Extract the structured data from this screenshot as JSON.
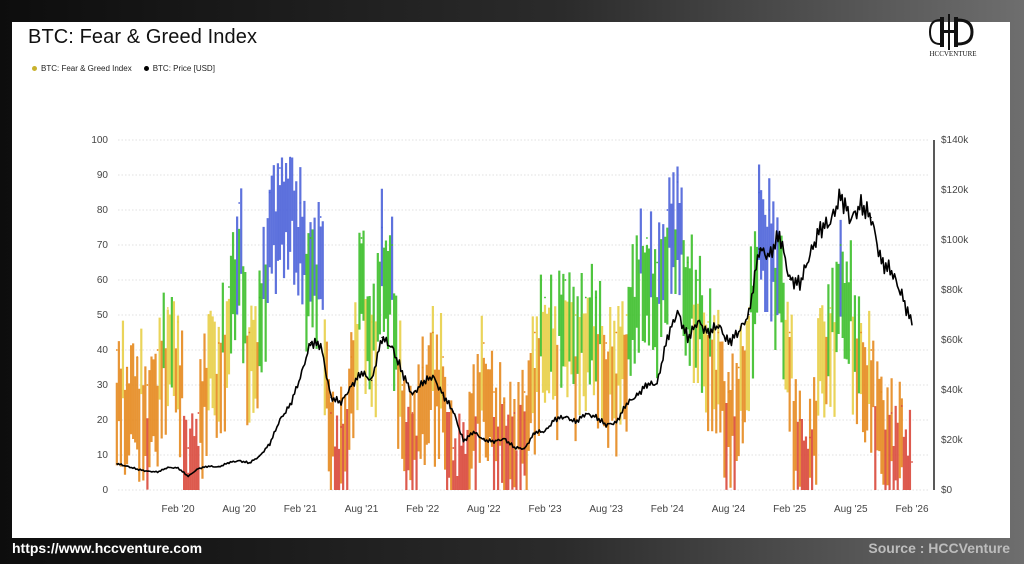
{
  "chart_data": {
    "type": "line",
    "title": "BTC: Fear & Greed Index",
    "legend": [
      {
        "name": "BTC: Fear & Greed Index",
        "color": "#c9b22e"
      },
      {
        "name": "BTC: Price [USD]",
        "color": "#000000"
      }
    ],
    "legend_placement": "top-left",
    "grid": true,
    "x_ticks": [
      "Feb '20",
      "Aug '20",
      "Feb '21",
      "Aug '21",
      "Feb '22",
      "Aug '22",
      "Feb '23",
      "Aug '23",
      "Feb '24",
      "Aug '24",
      "Feb '25",
      "Aug '25",
      "Feb '26"
    ],
    "y_left": {
      "ticks": [
        "0",
        "10",
        "20",
        "30",
        "40",
        "50",
        "60",
        "70",
        "80",
        "90",
        "100"
      ],
      "range": [
        0,
        100
      ]
    },
    "y_right": {
      "ticks": [
        "$0",
        "$20k",
        "$40k",
        "$60k",
        "$80k",
        "$100k",
        "$120k",
        "$140k"
      ],
      "range": [
        0,
        140000
      ]
    },
    "zone_colors": {
      "extreme_fear": "#d9483b",
      "fear": "#e58a1f",
      "neutral": "#e8cf48",
      "greed": "#3cbf2a",
      "extreme_greed": "#4d63d9"
    },
    "zone_thresholds": [
      25,
      46,
      55,
      75
    ],
    "series": [
      {
        "name": "BTC: Fear & Greed Index",
        "x": [
          "2019-08",
          "2019-09",
          "2019-10",
          "2019-11",
          "2019-12",
          "2020-01",
          "2020-02",
          "2020-03",
          "2020-04",
          "2020-05",
          "2020-06",
          "2020-07",
          "2020-08",
          "2020-09",
          "2020-10",
          "2020-11",
          "2020-12",
          "2021-01",
          "2021-02",
          "2021-03",
          "2021-04",
          "2021-05",
          "2021-06",
          "2021-07",
          "2021-08",
          "2021-09",
          "2021-10",
          "2021-11",
          "2021-12",
          "2022-01",
          "2022-02",
          "2022-03",
          "2022-04",
          "2022-05",
          "2022-06",
          "2022-07",
          "2022-08",
          "2022-09",
          "2022-10",
          "2022-11",
          "2022-12",
          "2023-01",
          "2023-02",
          "2023-03",
          "2023-04",
          "2023-05",
          "2023-06",
          "2023-07",
          "2023-08",
          "2023-09",
          "2023-10",
          "2023-11",
          "2023-12",
          "2024-01",
          "2024-02",
          "2024-03",
          "2024-04",
          "2024-05",
          "2024-06",
          "2024-07",
          "2024-08",
          "2024-09",
          "2024-10",
          "2024-11",
          "2024-12",
          "2025-01",
          "2025-02",
          "2025-03",
          "2025-04",
          "2025-05",
          "2025-06",
          "2025-07",
          "2025-08",
          "2025-09",
          "2025-10",
          "2025-11",
          "2025-12",
          "2026-01",
          "2026-02"
        ],
        "values": [
          40,
          35,
          38,
          30,
          40,
          52,
          48,
          12,
          22,
          50,
          42,
          58,
          82,
          45,
          55,
          85,
          92,
          95,
          82,
          72,
          78,
          22,
          18,
          38,
          72,
          48,
          75,
          70,
          30,
          22,
          35,
          45,
          38,
          12,
          14,
          30,
          42,
          28,
          25,
          22,
          28,
          45,
          55,
          50,
          60,
          50,
          55,
          55,
          42,
          45,
          50,
          70,
          72,
          65,
          80,
          88,
          65,
          60,
          48,
          45,
          28,
          35,
          52,
          85,
          80,
          72,
          45,
          20,
          15,
          50,
          52,
          70,
          60,
          45,
          40,
          28,
          22,
          24,
          8
        ]
      },
      {
        "name": "BTC: Price [USD]",
        "x": [
          "2019-08",
          "2019-09",
          "2019-10",
          "2019-11",
          "2019-12",
          "2020-01",
          "2020-02",
          "2020-03",
          "2020-04",
          "2020-05",
          "2020-06",
          "2020-07",
          "2020-08",
          "2020-09",
          "2020-10",
          "2020-11",
          "2020-12",
          "2021-01",
          "2021-02",
          "2021-03",
          "2021-04",
          "2021-05",
          "2021-06",
          "2021-07",
          "2021-08",
          "2021-09",
          "2021-10",
          "2021-11",
          "2021-12",
          "2022-01",
          "2022-02",
          "2022-03",
          "2022-04",
          "2022-05",
          "2022-06",
          "2022-07",
          "2022-08",
          "2022-09",
          "2022-10",
          "2022-11",
          "2022-12",
          "2023-01",
          "2023-02",
          "2023-03",
          "2023-04",
          "2023-05",
          "2023-06",
          "2023-07",
          "2023-08",
          "2023-09",
          "2023-10",
          "2023-11",
          "2023-12",
          "2024-01",
          "2024-02",
          "2024-03",
          "2024-04",
          "2024-05",
          "2024-06",
          "2024-07",
          "2024-08",
          "2024-09",
          "2024-10",
          "2024-11",
          "2024-12",
          "2025-01",
          "2025-02",
          "2025-03",
          "2025-04",
          "2025-05",
          "2025-06",
          "2025-07",
          "2025-08",
          "2025-09",
          "2025-10",
          "2025-11",
          "2025-12",
          "2026-01",
          "2026-02"
        ],
        "values": [
          10500,
          9500,
          8300,
          7500,
          7200,
          9000,
          8800,
          5500,
          8600,
          9500,
          9200,
          11000,
          11700,
          10800,
          13500,
          18500,
          28000,
          34000,
          45000,
          59000,
          58000,
          37000,
          35000,
          41500,
          47000,
          43800,
          61000,
          57000,
          47000,
          38000,
          43000,
          45500,
          38000,
          31500,
          19500,
          23300,
          20000,
          19400,
          20500,
          17000,
          16500,
          23100,
          23500,
          28400,
          29300,
          27200,
          30500,
          29200,
          26000,
          27000,
          34500,
          37700,
          42300,
          42500,
          61000,
          71300,
          60600,
          67500,
          62700,
          66000,
          58900,
          63300,
          70200,
          96400,
          93400,
          102400,
          84300,
          82500,
          94200,
          104600,
          107100,
          117800,
          108200,
          114000,
          109000,
          91000,
          87500,
          78000,
          66000
        ]
      }
    ]
  },
  "logo": {
    "text": "HCCVENTURE"
  },
  "footer": {
    "url": "https://www.hccventure.com",
    "source": "Source : HCCVenture"
  }
}
